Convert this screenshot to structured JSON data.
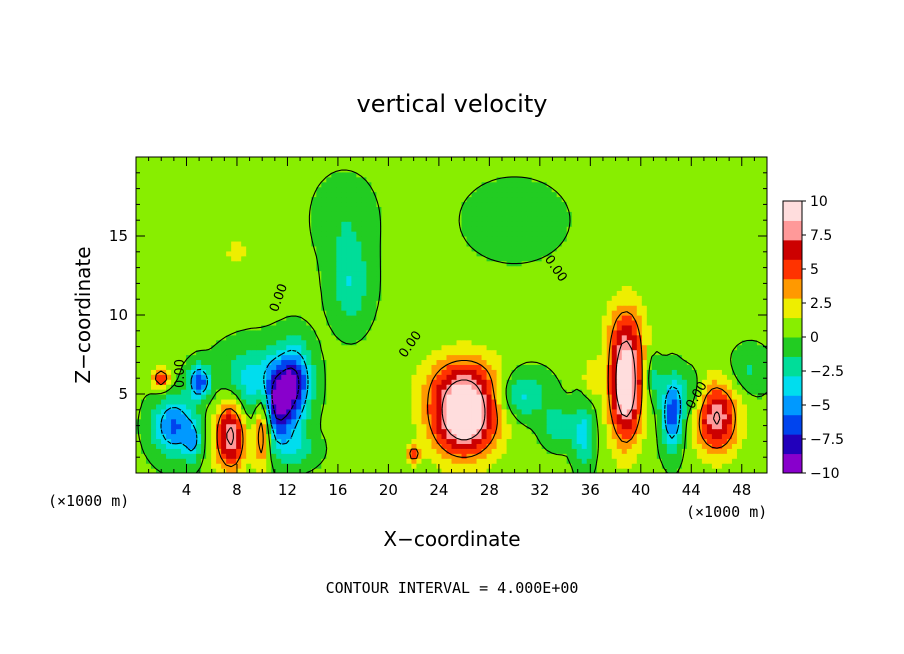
{
  "chart_data": {
    "type": "heatmap",
    "title": "vertical velocity",
    "xlabel": "X−coordinate",
    "ylabel": "Z−coordinate",
    "x_unit_label": "(×1000 m)",
    "xlim": [
      0,
      50
    ],
    "ylim": [
      0,
      20
    ],
    "x_ticks": [
      "4",
      "8",
      "12",
      "16",
      "20",
      "24",
      "28",
      "32",
      "36",
      "40",
      "44",
      "48"
    ],
    "x_tick_values": [
      4,
      8,
      12,
      16,
      20,
      24,
      28,
      32,
      36,
      40,
      44,
      48
    ],
    "y_ticks": [
      "5",
      "10",
      "15"
    ],
    "y_tick_values": [
      5,
      10,
      15
    ],
    "colorbar": {
      "range": [
        -10,
        10
      ],
      "tick_labels": [
        "10",
        "7.5",
        "5",
        "2.5",
        "0",
        "−2.5",
        "−5",
        "−7.5",
        "−10"
      ],
      "tick_values": [
        10,
        7.5,
        5,
        2.5,
        0,
        -2.5,
        -5,
        -7.5,
        -10
      ],
      "colors": [
        "#8800cc",
        "#2200bb",
        "#0044ee",
        "#0099ff",
        "#00ddee",
        "#00dd99",
        "#22cc22",
        "#88ee00",
        "#eeee00",
        "#ff9900",
        "#ff3300",
        "#cc0000",
        "#ff9999",
        "#ffdddd"
      ]
    },
    "contour_labels": [
      "0.00",
      "0.00",
      "0.00",
      "0.00",
      "0.00"
    ],
    "footer": "CONTOUR INTERVAL = 4.000E+00",
    "features": [
      {
        "x": 3.0,
        "z": 3.0,
        "w": -6.5,
        "rx": 1.6,
        "rz": 1.8
      },
      {
        "x": 5.0,
        "z": 5.8,
        "w": -7.5,
        "rx": 0.8,
        "rz": 1.0
      },
      {
        "x": 4.5,
        "z": 2.0,
        "w": -4.0,
        "rx": 0.6,
        "rz": 1.2
      },
      {
        "x": 7.5,
        "z": 2.4,
        "w": 8.5,
        "rx": 1.2,
        "rz": 2.2
      },
      {
        "x": 2.0,
        "z": 6.0,
        "w": 6.0,
        "rx": 0.7,
        "rz": 0.7
      },
      {
        "x": 10.0,
        "z": 3.2,
        "w": 9.5,
        "rx": 0.7,
        "rz": 2.6
      },
      {
        "x": 11.0,
        "z": 4.2,
        "w": -9.0,
        "rx": 1.8,
        "rz": 2.6
      },
      {
        "x": 12.6,
        "z": 6.0,
        "w": -6.5,
        "rx": 1.3,
        "rz": 2.2
      },
      {
        "x": 9.0,
        "z": 6.0,
        "w": -3.0,
        "rx": 2.5,
        "rz": 2.0
      },
      {
        "x": 17.0,
        "z": 12.0,
        "w": -3.2,
        "rx": 1.5,
        "rz": 2.5
      },
      {
        "x": 16.5,
        "z": 16.0,
        "w": -1.5,
        "rx": 2.2,
        "rz": 2.5
      },
      {
        "x": 26.0,
        "z": 3.6,
        "w": 11.0,
        "rx": 2.6,
        "rz": 2.5
      },
      {
        "x": 26.0,
        "z": 6.0,
        "w": 3.0,
        "rx": 3.5,
        "rz": 2.0
      },
      {
        "x": 30.5,
        "z": 5.0,
        "w": -4.0,
        "rx": 2.0,
        "rz": 1.5
      },
      {
        "x": 33.5,
        "z": 3.0,
        "w": -3.0,
        "rx": 1.2,
        "rz": 1.2
      },
      {
        "x": 35.5,
        "z": 2.5,
        "w": -4.0,
        "rx": 0.8,
        "rz": 2.0
      },
      {
        "x": 38.8,
        "z": 5.5,
        "w": 10.5,
        "rx": 1.3,
        "rz": 3.5
      },
      {
        "x": 38.8,
        "z": 9.0,
        "w": 2.5,
        "rx": 1.6,
        "rz": 2.5
      },
      {
        "x": 42.5,
        "z": 3.8,
        "w": -7.5,
        "rx": 0.8,
        "rz": 2.2
      },
      {
        "x": 41.0,
        "z": 6.0,
        "w": -3.0,
        "rx": 0.6,
        "rz": 1.5
      },
      {
        "x": 46.0,
        "z": 3.5,
        "w": 8.0,
        "rx": 1.7,
        "rz": 2.2
      },
      {
        "x": 44.0,
        "z": 5.0,
        "w": -2.5,
        "rx": 1.0,
        "rz": 1.5
      },
      {
        "x": 48.5,
        "z": 6.5,
        "w": -2.0,
        "rx": 1.5,
        "rz": 1.5
      },
      {
        "x": 22.0,
        "z": 1.2,
        "w": 5.0,
        "rx": 0.5,
        "rz": 0.6
      },
      {
        "x": 36.0,
        "z": 6.0,
        "w": 2.5,
        "rx": 0.6,
        "rz": 1.2
      },
      {
        "x": 13.0,
        "z": 1.5,
        "w": -2.0,
        "rx": 1.5,
        "rz": 1.0
      },
      {
        "x": 8.0,
        "z": 14.0,
        "w": 1.2,
        "rx": 3.0,
        "rz": 2.5
      },
      {
        "x": 30.0,
        "z": 16.0,
        "w": -1.0,
        "rx": 4.0,
        "rz": 2.5
      },
      {
        "x": 45.0,
        "z": 12.0,
        "w": 0.8,
        "rx": 3.5,
        "rz": 3.5
      }
    ]
  }
}
